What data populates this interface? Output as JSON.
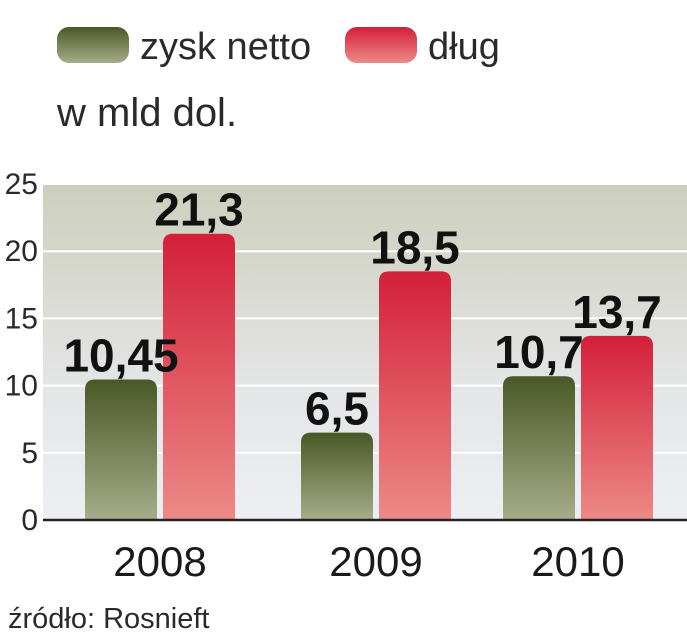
{
  "chart_data": {
    "type": "bar",
    "unit": "w mld dol.",
    "categories": [
      "2008",
      "2009",
      "2010"
    ],
    "series": [
      {
        "name": "zysk netto",
        "values": [
          10.45,
          6.5,
          10.7
        ],
        "labels": [
          "10,45",
          "6,5",
          "10,7"
        ],
        "color": "#4f5e29"
      },
      {
        "name": "dług",
        "values": [
          21.3,
          18.5,
          13.7
        ],
        "labels": [
          "21,3",
          "18,5",
          "13,7"
        ],
        "color": "#d9273e"
      }
    ],
    "y_ticks": [
      "0",
      "5",
      "10",
      "15",
      "20",
      "25"
    ],
    "ylim": [
      0,
      25
    ],
    "source": "źródło: Rosnieft",
    "background_band_colors": [
      "#cfd0c0",
      "#e8e9ee"
    ]
  }
}
